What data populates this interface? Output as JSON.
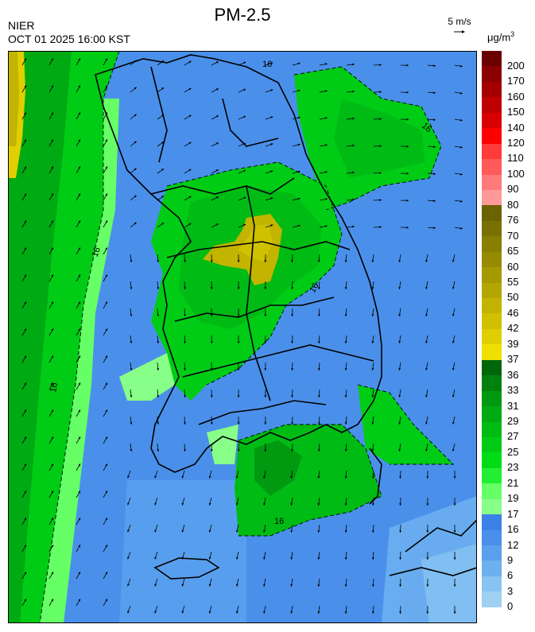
{
  "header": {
    "agency": "NIER",
    "datetime": "OCT 01 2025 16:00 KST",
    "title": "PM-2.5",
    "wind_scale_label": "5 m/s",
    "unit_label": "μg/m",
    "unit_power": "3"
  },
  "legend": {
    "levels": [
      {
        "label": "200",
        "color": "#6b0000"
      },
      {
        "label": "170",
        "color": "#8b0000"
      },
      {
        "label": "160",
        "color": "#a50000"
      },
      {
        "label": "150",
        "color": "#bf0000"
      },
      {
        "label": "140",
        "color": "#d80000"
      },
      {
        "label": "120",
        "color": "#ff0000"
      },
      {
        "label": "110",
        "color": "#ff3b3b"
      },
      {
        "label": "100",
        "color": "#ff5a5a"
      },
      {
        "label": "90",
        "color": "#ff7b7b"
      },
      {
        "label": "80",
        "color": "#ff9a9a"
      },
      {
        "label": "76",
        "color": "#6b6200"
      },
      {
        "label": "70",
        "color": "#7a7000"
      },
      {
        "label": "65",
        "color": "#887e00"
      },
      {
        "label": "60",
        "color": "#968b00"
      },
      {
        "label": "55",
        "color": "#a59900"
      },
      {
        "label": "50",
        "color": "#b3a600"
      },
      {
        "label": "46",
        "color": "#c2b400"
      },
      {
        "label": "42",
        "color": "#d0c100"
      },
      {
        "label": "39",
        "color": "#dfcf00"
      },
      {
        "label": "37",
        "color": "#f0e000"
      },
      {
        "label": "36",
        "color": "#00660a"
      },
      {
        "label": "33",
        "color": "#00800d"
      },
      {
        "label": "31",
        "color": "#009910"
      },
      {
        "label": "29",
        "color": "#00aa12"
      },
      {
        "label": "27",
        "color": "#00bb14"
      },
      {
        "label": "25",
        "color": "#00cc15"
      },
      {
        "label": "23",
        "color": "#00dd17"
      },
      {
        "label": "21",
        "color": "#22ee33"
      },
      {
        "label": "19",
        "color": "#66ff66"
      },
      {
        "label": "17",
        "color": "#88ff88"
      },
      {
        "label": "16",
        "color": "#3c82e6"
      },
      {
        "label": "12",
        "color": "#4a90ea"
      },
      {
        "label": "9",
        "color": "#5aa0ee"
      },
      {
        "label": "6",
        "color": "#6cb0f0"
      },
      {
        "label": "3",
        "color": "#88c4f2"
      },
      {
        "label": "0",
        "color": "#9fd0f2"
      }
    ]
  },
  "contour_label": "16"
}
